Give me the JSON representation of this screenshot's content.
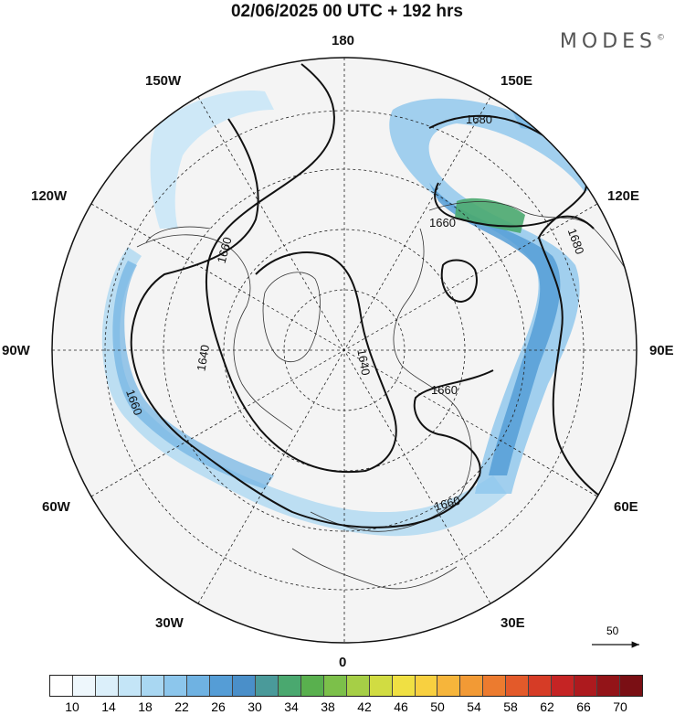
{
  "title": "02/06/2025  00 UTC  + 192 hrs",
  "brand": "MODES",
  "brand_mark": "©",
  "longitude_labels": {
    "top": "180",
    "bottom": "0",
    "left": "90W",
    "right": "90E",
    "upper_left_150": "150W",
    "upper_left_120": "120W",
    "lower_left_60": "60W",
    "lower_left_30": "30W",
    "upper_right_150": "150E",
    "upper_right_120": "120E",
    "lower_right_60": "60E",
    "lower_right_30": "30E"
  },
  "contour_labels": [
    "1680",
    "1680",
    "1660",
    "1660",
    "1660",
    "1660",
    "1660",
    "1640",
    "1640"
  ],
  "wind_scale": {
    "value": "50"
  },
  "colorbar": {
    "colors": [
      "#ffffff",
      "#eef7fc",
      "#dbeffa",
      "#c4e5f7",
      "#a9d7f2",
      "#8cc6ec",
      "#6fb2e2",
      "#559dd6",
      "#4a8fc9",
      "#4a9a9a",
      "#4aa86f",
      "#59b04e",
      "#7cc04a",
      "#a6cf46",
      "#d1dc42",
      "#f0e043",
      "#f8d040",
      "#f6b53b",
      "#f29a35",
      "#ec7b2f",
      "#e35a2a",
      "#d63c26",
      "#c52424",
      "#ad1a1e",
      "#931418",
      "#7a0f14"
    ],
    "tick_labels": [
      "10",
      "14",
      "18",
      "22",
      "26",
      "30",
      "34",
      "38",
      "42",
      "46",
      "50",
      "54",
      "58",
      "62",
      "66",
      "70"
    ]
  }
}
